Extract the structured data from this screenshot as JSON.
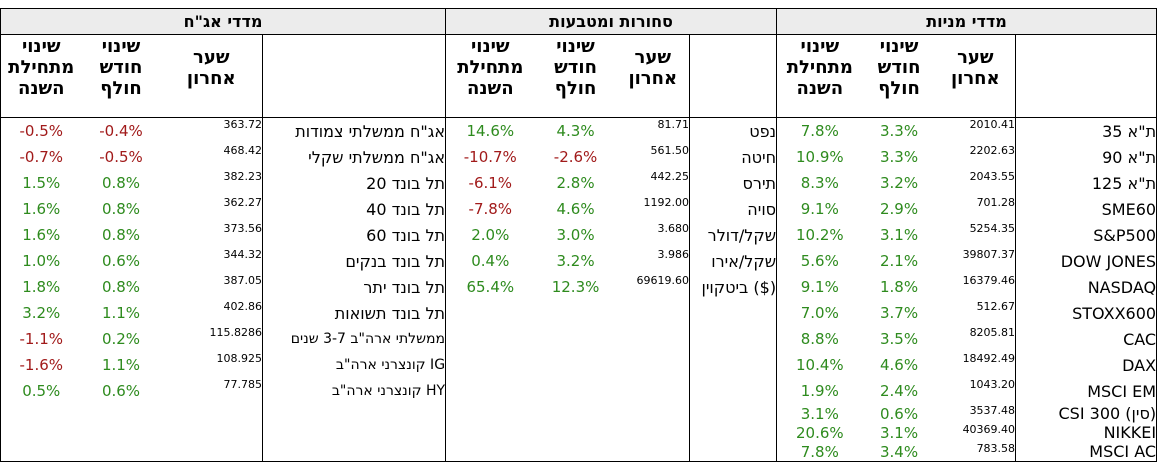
{
  "sections": {
    "bonds": "מדדי אג\"ח",
    "commodities": "סחורות ומטבעות",
    "stocks": "מדדי מניות"
  },
  "headers": {
    "ytd": [
      "שינוי",
      "מתחילת",
      "השנה"
    ],
    "mtd": [
      "שינוי",
      "חודש",
      "חולף"
    ],
    "rate": [
      "שער",
      "אחרון"
    ]
  },
  "bonds": [
    {
      "name": "אג\"ח ממשלתי צמודות",
      "rate": "363.72",
      "mtd": "-0.4%",
      "ytd": "-0.5%"
    },
    {
      "name": "אג\"ח ממשלתי שקלי",
      "rate": "468.42",
      "mtd": "-0.5%",
      "ytd": "-0.7%"
    },
    {
      "name": "תל בונד 20",
      "rate": "382.23",
      "mtd": "0.8%",
      "ytd": "1.5%"
    },
    {
      "name": "תל בונד 40",
      "rate": "362.27",
      "mtd": "0.8%",
      "ytd": "1.6%"
    },
    {
      "name": "תל בונד 60",
      "rate": "373.56",
      "mtd": "0.8%",
      "ytd": "1.6%"
    },
    {
      "name": "תל בונד בנקים",
      "rate": "344.32",
      "mtd": "0.6%",
      "ytd": "1.0%"
    },
    {
      "name": "תל בונד יתר",
      "rate": "387.05",
      "mtd": "0.8%",
      "ytd": "1.8%"
    },
    {
      "name": "תל בונד תשואות",
      "rate": "402.86",
      "mtd": "1.1%",
      "ytd": "3.2%"
    },
    {
      "name": "ממשלתי ארה\"ב 3-7 שנים",
      "rate": "115.8286",
      "mtd": "0.2%",
      "ytd": "-1.1%"
    },
    {
      "name": "קונצרני ארה\"ב IG",
      "rate": "108.925",
      "mtd": "1.1%",
      "ytd": "-1.6%"
    },
    {
      "name": "קונצרני ארה\"ב HY",
      "rate": "77.785",
      "mtd": "0.6%",
      "ytd": "0.5%"
    }
  ],
  "commodities": [
    {
      "name": "נפט",
      "rate": "81.71",
      "mtd": "4.3%",
      "ytd": "14.6%"
    },
    {
      "name": "חיטה",
      "rate": "561.50",
      "mtd": "-2.6%",
      "ytd": "-10.7%"
    },
    {
      "name": "תירס",
      "rate": "442.25",
      "mtd": "2.8%",
      "ytd": "-6.1%"
    },
    {
      "name": "סויה",
      "rate": "1192.00",
      "mtd": "4.6%",
      "ytd": "-7.8%"
    },
    {
      "name": "שקל/דולר",
      "rate": "3.680",
      "mtd": "3.0%",
      "ytd": "2.0%"
    },
    {
      "name": "שקל/אירו",
      "rate": "3.986",
      "mtd": "3.2%",
      "ytd": "0.4%"
    },
    {
      "name": "ביטקוין ($)",
      "rate": "69619.60",
      "mtd": "12.3%",
      "ytd": "65.4%"
    }
  ],
  "stocks": [
    {
      "name": "ת\"א 35",
      "rate": "2010.41",
      "mtd": "3.3%",
      "ytd": "7.8%"
    },
    {
      "name": "ת\"א 90",
      "rate": "2202.63",
      "mtd": "3.3%",
      "ytd": "10.9%"
    },
    {
      "name": "ת\"א 125",
      "rate": "2043.55",
      "mtd": "3.2%",
      "ytd": "8.3%"
    },
    {
      "name": "SME60",
      "rate": "701.28",
      "mtd": "2.9%",
      "ytd": "9.1%"
    },
    {
      "name": "S&P500",
      "rate": "5254.35",
      "mtd": "3.1%",
      "ytd": "10.2%"
    },
    {
      "name": "DOW JONES",
      "rate": "39807.37",
      "mtd": "2.1%",
      "ytd": "5.6%"
    },
    {
      "name": "NASDAQ",
      "rate": "16379.46",
      "mtd": "1.8%",
      "ytd": "9.1%"
    },
    {
      "name": "STOXX600",
      "rate": "512.67",
      "mtd": "3.7%",
      "ytd": "7.0%"
    },
    {
      "name": "CAC",
      "rate": "8205.81",
      "mtd": "3.5%",
      "ytd": "8.8%"
    },
    {
      "name": "DAX",
      "rate": "18492.49",
      "mtd": "4.6%",
      "ytd": "10.4%"
    },
    {
      "name": "MSCI EM",
      "rate": "1043.20",
      "mtd": "2.4%",
      "ytd": "1.9%"
    },
    {
      "name": "CSI 300 (סין)",
      "rate": "3537.48",
      "mtd": "0.6%",
      "ytd": "3.1%"
    },
    {
      "name": "NIKKEI",
      "rate": "40369.40",
      "mtd": "3.1%",
      "ytd": "20.6%"
    },
    {
      "name": "MSCI AC",
      "rate": "783.58",
      "mtd": "3.4%",
      "ytd": "7.8%"
    }
  ],
  "colors": {
    "positive": "#2e8b1e",
    "negative": "#a11a1a",
    "header_bg": "#ececec"
  }
}
